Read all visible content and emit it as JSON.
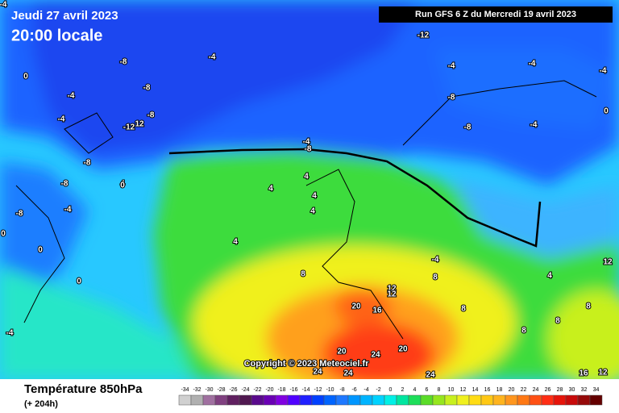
{
  "header": {
    "date": "Jeudi 27 avril 2023",
    "time": "20:00 locale",
    "run": "Run GFS 6 Z du Mercredi 19 avril 2023",
    "copyright": "Copyright © 2023 Meteociel.fr"
  },
  "footer": {
    "title": "Température 850hPa",
    "lead": "(+ 204h)"
  },
  "legend": {
    "values": [
      -34,
      -32,
      -30,
      -28,
      -26,
      -24,
      -22,
      -20,
      -18,
      -16,
      -14,
      -12,
      -10,
      -8,
      -6,
      -4,
      -2,
      0,
      2,
      4,
      6,
      8,
      10,
      12,
      14,
      16,
      18,
      20,
      22,
      24,
      26,
      28,
      30,
      32,
      34
    ],
    "colors": [
      "#d0d0d0",
      "#b0b0b0",
      "#a070a0",
      "#804080",
      "#602060",
      "#501850",
      "#5a0a8c",
      "#6a00b4",
      "#8000e0",
      "#5000ff",
      "#2020ff",
      "#0040ff",
      "#0064ff",
      "#1e78ff",
      "#0096ff",
      "#00b4ff",
      "#00d2ff",
      "#00f0e6",
      "#00e6a0",
      "#1ede5a",
      "#5adc28",
      "#96e61e",
      "#c8f01e",
      "#f0f01e",
      "#ffdc14",
      "#ffc814",
      "#ffb41e",
      "#ff961e",
      "#ff7814",
      "#ff5014",
      "#ff2d14",
      "#e6140a",
      "#c80a0a",
      "#960a0a",
      "#640000"
    ]
  },
  "contour_labels": [
    "-8",
    "-8",
    "-4",
    "0",
    "-4",
    "-4",
    "-8",
    "-12",
    "12",
    "-8",
    "-8",
    "-12",
    "-4",
    "-4",
    "-8",
    "-8",
    "-4",
    "0",
    "-4",
    "-4",
    "-8",
    "-4",
    "0",
    "0",
    "-8",
    "-4",
    "4",
    "4",
    "4",
    "4",
    "4",
    "4",
    "0",
    "0",
    "-4",
    "8",
    "8",
    "8",
    "8",
    "12",
    "12",
    "20",
    "16",
    "20",
    "24",
    "20",
    "24",
    "24",
    "24",
    "8",
    "8",
    "12",
    "12",
    "16",
    "-4",
    "4"
  ]
}
